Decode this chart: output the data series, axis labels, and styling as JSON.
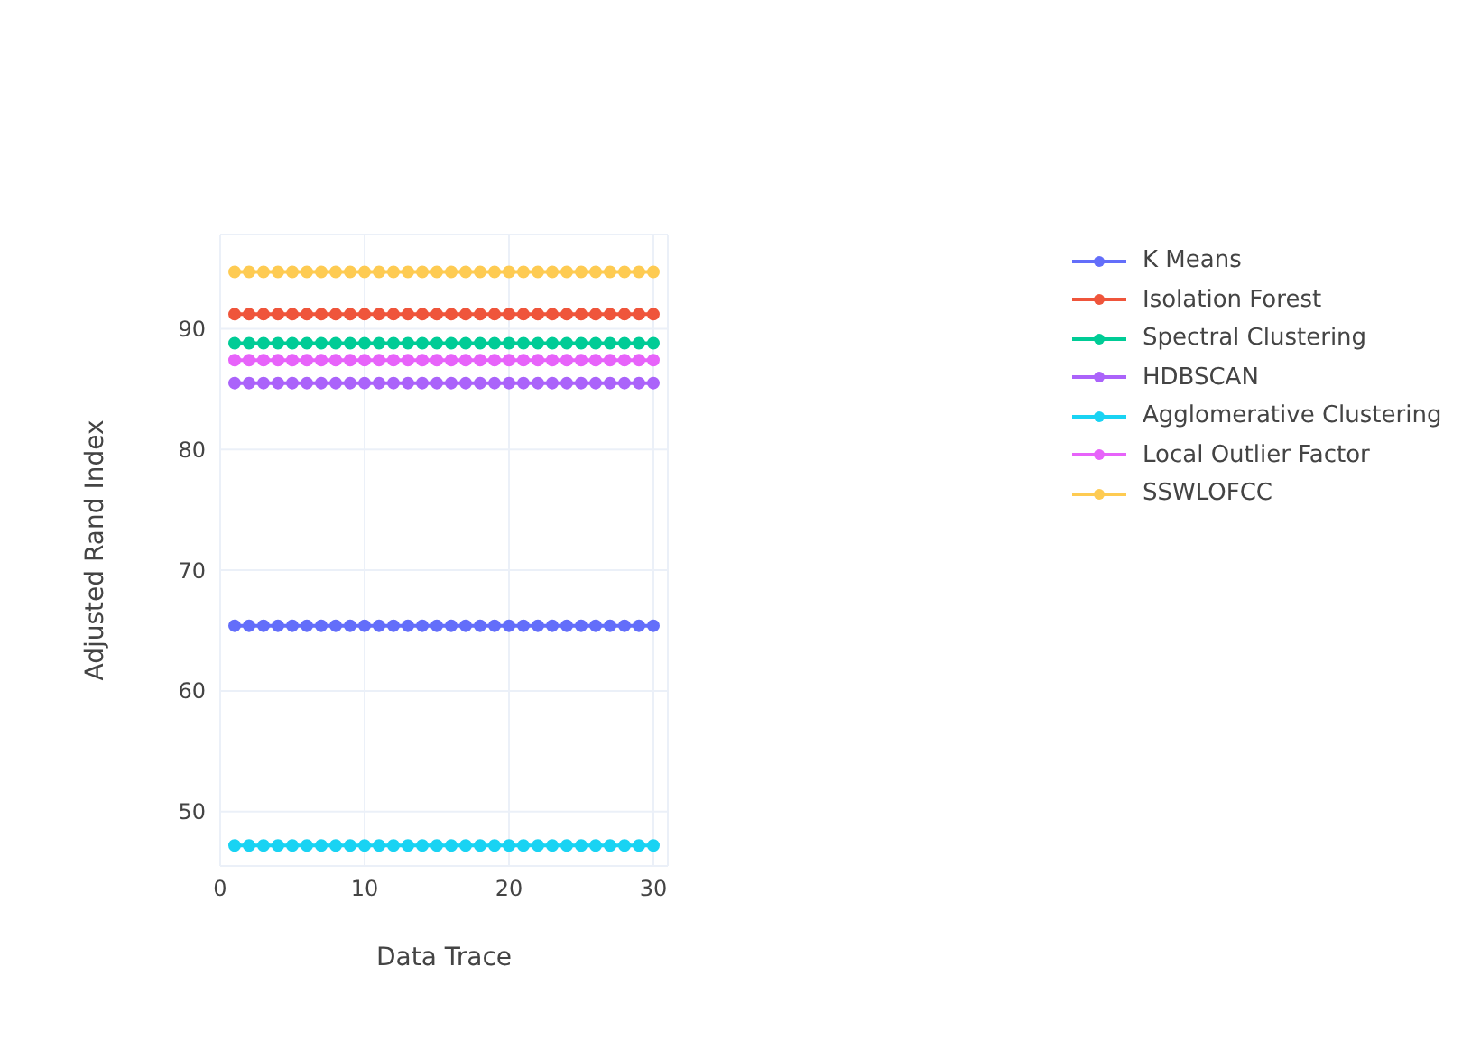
{
  "chart_data": {
    "type": "line",
    "xlabel": "Data Trace",
    "ylabel": "Adjusted Rand Index",
    "x": [
      1,
      2,
      3,
      4,
      5,
      6,
      7,
      8,
      9,
      10,
      11,
      12,
      13,
      14,
      15,
      16,
      17,
      18,
      19,
      20,
      21,
      22,
      23,
      24,
      25,
      26,
      27,
      28,
      29,
      30
    ],
    "xlim": [
      0,
      31
    ],
    "xticks": [
      0,
      10,
      20,
      30
    ],
    "ylim": [
      45.5,
      97.8
    ],
    "yticks": [
      50,
      60,
      70,
      80,
      90
    ],
    "grid": true,
    "legend": "top right",
    "marker": "circle",
    "line_style": "solid",
    "series": [
      {
        "name": "K Means",
        "color": "#636efa",
        "values": [
          65.4,
          65.4,
          65.4,
          65.4,
          65.4,
          65.4,
          65.4,
          65.4,
          65.4,
          65.4,
          65.4,
          65.4,
          65.4,
          65.4,
          65.4,
          65.4,
          65.4,
          65.4,
          65.4,
          65.4,
          65.4,
          65.4,
          65.4,
          65.4,
          65.4,
          65.4,
          65.4,
          65.4,
          65.4,
          65.4
        ]
      },
      {
        "name": "Isolation Forest",
        "color": "#ef553b",
        "values": [
          91.2,
          91.2,
          91.2,
          91.2,
          91.2,
          91.2,
          91.2,
          91.2,
          91.2,
          91.2,
          91.2,
          91.2,
          91.2,
          91.2,
          91.2,
          91.2,
          91.2,
          91.2,
          91.2,
          91.2,
          91.2,
          91.2,
          91.2,
          91.2,
          91.2,
          91.2,
          91.2,
          91.2,
          91.2,
          91.2
        ]
      },
      {
        "name": "Spectral Clustering",
        "color": "#00cc96",
        "values": [
          88.8,
          88.8,
          88.8,
          88.8,
          88.8,
          88.8,
          88.8,
          88.8,
          88.8,
          88.8,
          88.8,
          88.8,
          88.8,
          88.8,
          88.8,
          88.8,
          88.8,
          88.8,
          88.8,
          88.8,
          88.8,
          88.8,
          88.8,
          88.8,
          88.8,
          88.8,
          88.8,
          88.8,
          88.8,
          88.8
        ]
      },
      {
        "name": "HDBSCAN",
        "color": "#ab63fa",
        "values": [
          85.5,
          85.5,
          85.5,
          85.5,
          85.5,
          85.5,
          85.5,
          85.5,
          85.5,
          85.5,
          85.5,
          85.5,
          85.5,
          85.5,
          85.5,
          85.5,
          85.5,
          85.5,
          85.5,
          85.5,
          85.5,
          85.5,
          85.5,
          85.5,
          85.5,
          85.5,
          85.5,
          85.5,
          85.5,
          85.5
        ]
      },
      {
        "name": "Agglomerative Clustering",
        "color": "#19d3f3",
        "values": [
          47.2,
          47.2,
          47.2,
          47.2,
          47.2,
          47.2,
          47.2,
          47.2,
          47.2,
          47.2,
          47.2,
          47.2,
          47.2,
          47.2,
          47.2,
          47.2,
          47.2,
          47.2,
          47.2,
          47.2,
          47.2,
          47.2,
          47.2,
          47.2,
          47.2,
          47.2,
          47.2,
          47.2,
          47.2,
          47.2
        ]
      },
      {
        "name": "Local Outlier Factor",
        "color": "#e763fa",
        "values": [
          87.4,
          87.4,
          87.4,
          87.4,
          87.4,
          87.4,
          87.4,
          87.4,
          87.4,
          87.4,
          87.4,
          87.4,
          87.4,
          87.4,
          87.4,
          87.4,
          87.4,
          87.4,
          87.4,
          87.4,
          87.4,
          87.4,
          87.4,
          87.4,
          87.4,
          87.4,
          87.4,
          87.4,
          87.4,
          87.4
        ]
      },
      {
        "name": "SSWLOFCC",
        "color": "#fecb52",
        "values": [
          94.7,
          94.7,
          94.7,
          94.7,
          94.7,
          94.7,
          94.7,
          94.7,
          94.7,
          94.7,
          94.7,
          94.7,
          94.7,
          94.7,
          94.7,
          94.7,
          94.7,
          94.7,
          94.7,
          94.7,
          94.7,
          94.7,
          94.7,
          94.7,
          94.7,
          94.7,
          94.7,
          94.7,
          94.7,
          94.7
        ]
      }
    ]
  }
}
